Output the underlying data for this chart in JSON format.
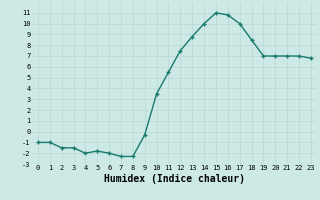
{
  "x": [
    0,
    1,
    2,
    3,
    4,
    5,
    6,
    7,
    8,
    9,
    10,
    11,
    12,
    13,
    14,
    15,
    16,
    17,
    18,
    19,
    20,
    21,
    22,
    23
  ],
  "y": [
    -1,
    -1,
    -1.5,
    -1.5,
    -2,
    -1.8,
    -2,
    -2.3,
    -2.3,
    -0.3,
    3.5,
    5.5,
    7.5,
    8.8,
    10.0,
    11.0,
    10.8,
    10.0,
    8.5,
    7.0,
    7.0,
    7.0,
    7.0,
    6.8
  ],
  "line_color": "#1a7a6e",
  "marker": "+",
  "markersize": 3,
  "linewidth": 1.0,
  "bg_color": "#cce9e5",
  "grid_color": "#b8d8d4",
  "xlabel": "Humidex (Indice chaleur)",
  "xlabel_fontsize": 7,
  "tick_fontsize": 5,
  "ylim": [
    -3,
    12
  ],
  "xlim": [
    -0.5,
    23.5
  ],
  "yticks": [
    -3,
    -2,
    -1,
    0,
    1,
    2,
    3,
    4,
    5,
    6,
    7,
    8,
    9,
    10,
    11
  ],
  "xticks": [
    0,
    1,
    2,
    3,
    4,
    5,
    6,
    7,
    8,
    9,
    10,
    11,
    12,
    13,
    14,
    15,
    16,
    17,
    18,
    19,
    20,
    21,
    22,
    23
  ]
}
